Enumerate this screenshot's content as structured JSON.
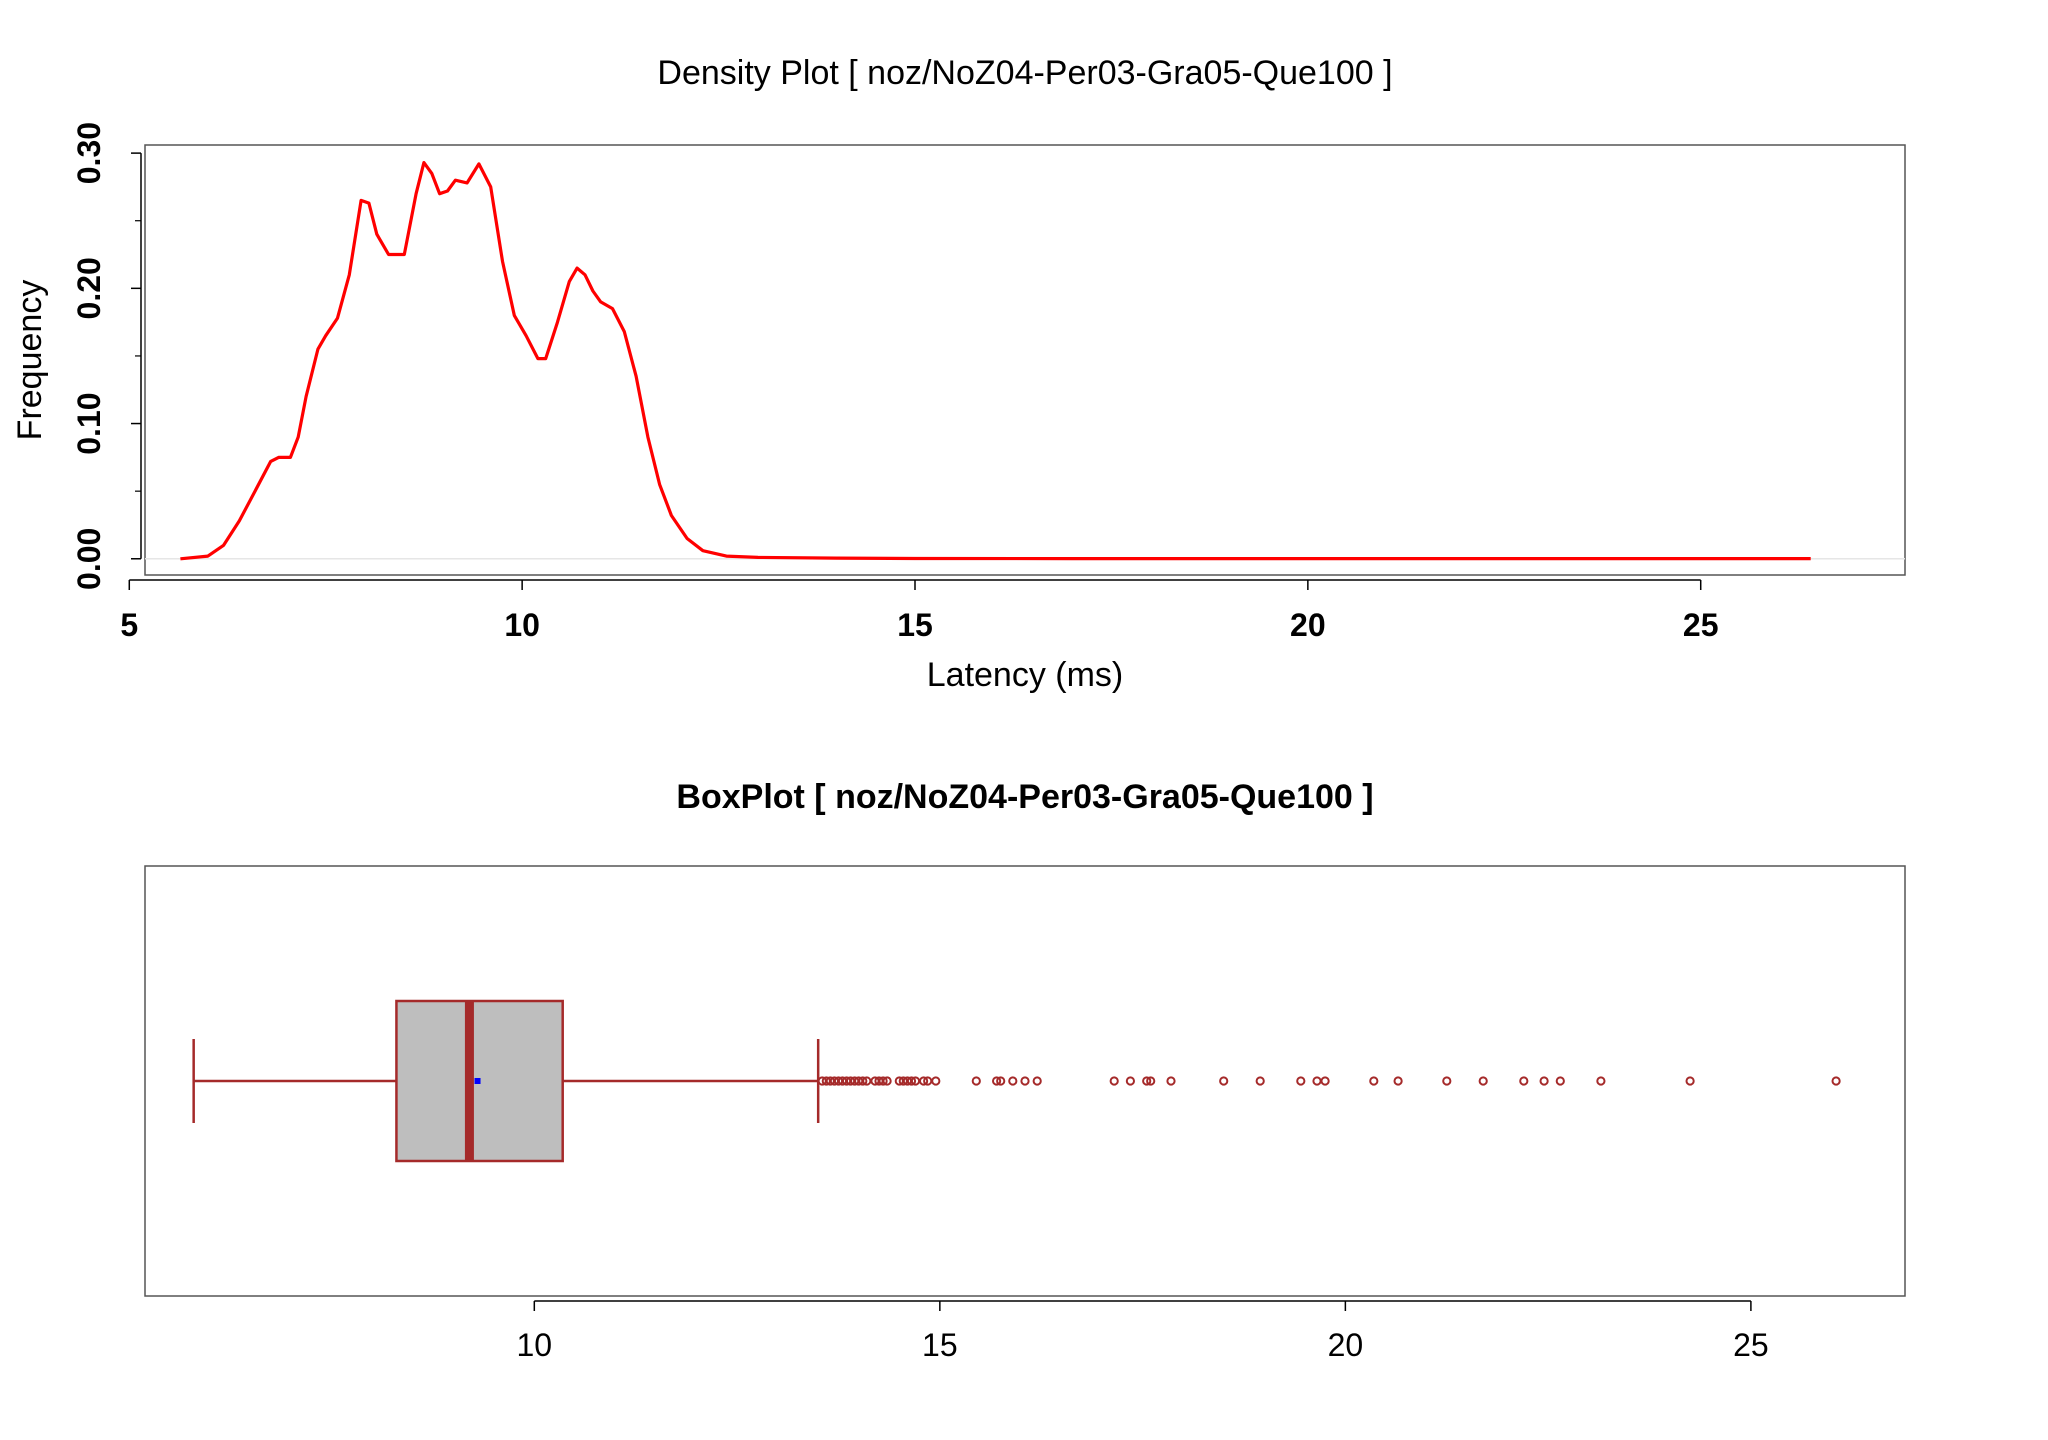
{
  "colors": {
    "density_line": "#ff0000",
    "box_stroke": "#a52a2a",
    "box_fill": "#bebebe",
    "mean_marker": "#0000ff",
    "frame": "#555555",
    "baseline": "#e6e6e6"
  },
  "chart_data": [
    {
      "type": "line",
      "title": "Density Plot [ noz/NoZ04-Per03-Gra05-Que100 ]",
      "xlabel": "Latency (ms)",
      "ylabel": "Frequency",
      "xlim": [
        5.2,
        27.6
      ],
      "ylim": [
        -0.012,
        0.306
      ],
      "x_ticks": [
        5,
        10,
        15,
        20,
        25
      ],
      "x_tick_labels": [
        "5",
        "10",
        "15",
        "20",
        "25"
      ],
      "y_ticks": [
        0.0,
        0.1,
        0.2,
        0.3
      ],
      "y_tick_labels": [
        "0.00",
        "0.10",
        "0.20",
        "0.30"
      ],
      "y_minor_ticks": [
        0.05,
        0.15,
        0.25
      ],
      "grid": false,
      "series": [
        {
          "x": [
            5.65,
            6.0,
            6.2,
            6.4,
            6.6,
            6.8,
            6.9,
            7.05,
            7.15,
            7.25,
            7.4,
            7.5,
            7.65,
            7.8,
            7.95,
            8.05,
            8.15,
            8.3,
            8.5,
            8.65,
            8.75,
            8.85,
            8.95,
            9.05,
            9.15,
            9.3,
            9.45,
            9.6,
            9.75,
            9.9,
            10.05,
            10.2,
            10.3,
            10.45,
            10.6,
            10.7,
            10.8,
            10.9,
            11.0,
            11.15,
            11.3,
            11.45,
            11.6,
            11.75,
            11.9,
            12.1,
            12.3,
            12.6,
            13.0,
            14.0,
            15.0,
            17.0,
            20.0,
            23.0,
            25.5,
            26.4
          ],
          "y": [
            0.0,
            0.002,
            0.01,
            0.028,
            0.05,
            0.072,
            0.075,
            0.075,
            0.09,
            0.12,
            0.155,
            0.165,
            0.178,
            0.21,
            0.265,
            0.263,
            0.24,
            0.225,
            0.225,
            0.27,
            0.293,
            0.285,
            0.27,
            0.272,
            0.28,
            0.278,
            0.292,
            0.275,
            0.22,
            0.18,
            0.165,
            0.148,
            0.148,
            0.175,
            0.205,
            0.215,
            0.21,
            0.198,
            0.19,
            0.185,
            0.168,
            0.135,
            0.09,
            0.055,
            0.032,
            0.015,
            0.006,
            0.002,
            0.001,
            0.0005,
            0.0002,
            0.0001,
            0.0001,
            0.0001,
            0.0001,
            0.0001
          ]
        }
      ]
    },
    {
      "type": "box",
      "title": "BoxPlot [ noz/NoZ04-Per03-Gra05-Que100 ]",
      "xlim": [
        5.2,
        26.9
      ],
      "x_ticks": [
        10,
        15,
        20,
        25
      ],
      "x_tick_labels": [
        "10",
        "15",
        "20",
        "25"
      ],
      "whisker_low": 5.8,
      "q1": 8.3,
      "median": 9.2,
      "q3": 10.35,
      "whisker_high": 13.5,
      "mean": 9.3,
      "outliers": [
        13.55,
        13.6,
        13.65,
        13.7,
        13.75,
        13.8,
        13.85,
        13.9,
        13.95,
        14.0,
        14.05,
        14.1,
        14.2,
        14.25,
        14.3,
        14.35,
        14.5,
        14.55,
        14.6,
        14.65,
        14.7,
        14.8,
        14.85,
        14.95,
        15.45,
        15.7,
        15.75,
        15.9,
        16.05,
        16.2,
        17.15,
        17.35,
        17.55,
        17.6,
        17.85,
        18.5,
        18.95,
        19.45,
        19.65,
        19.75,
        20.35,
        20.65,
        21.25,
        21.7,
        22.2,
        22.45,
        22.65,
        23.15,
        24.25,
        26.05
      ]
    }
  ]
}
